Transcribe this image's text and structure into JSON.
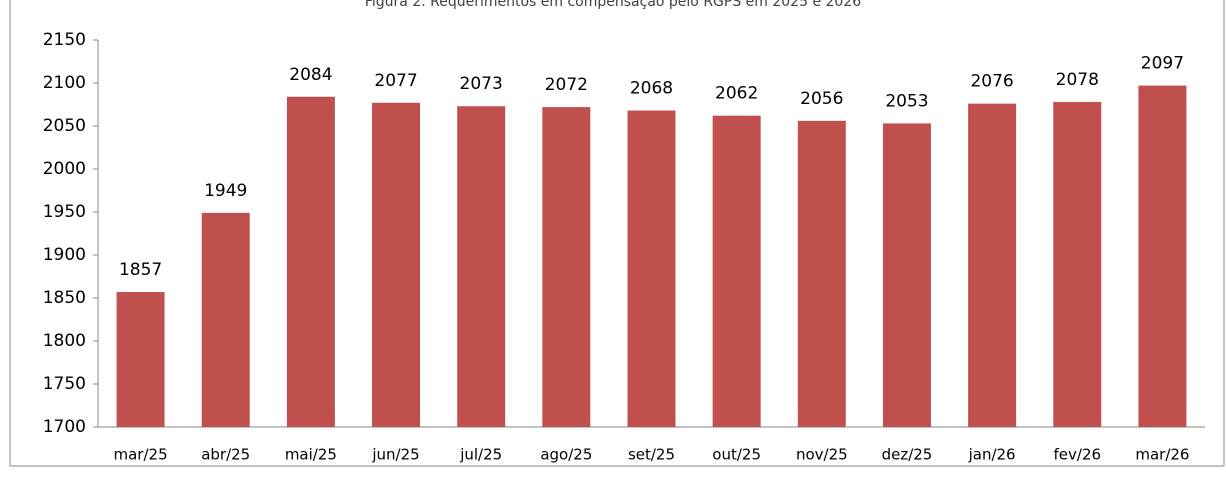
{
  "chart_data": {
    "type": "bar",
    "title": "Figura 2. Requerimentos em compensação pelo RGPS em 2025 e 2026",
    "categories": [
      "mar/25",
      "abr/25",
      "mai/25",
      "jun/25",
      "jul/25",
      "ago/25",
      "set/25",
      "out/25",
      "nov/25",
      "dez/25",
      "jan/26",
      "fev/26",
      "mar/26"
    ],
    "values": [
      1857,
      1949,
      2084,
      2077,
      2073,
      2072,
      2068,
      2062,
      2056,
      2053,
      2076,
      2078,
      2097
    ],
    "color": "#c0504d",
    "ylim": [
      1700,
      2150
    ],
    "yticks": [
      1700,
      1750,
      1800,
      1850,
      1900,
      1950,
      2000,
      2050,
      2100,
      2150
    ],
    "grid": false
  }
}
